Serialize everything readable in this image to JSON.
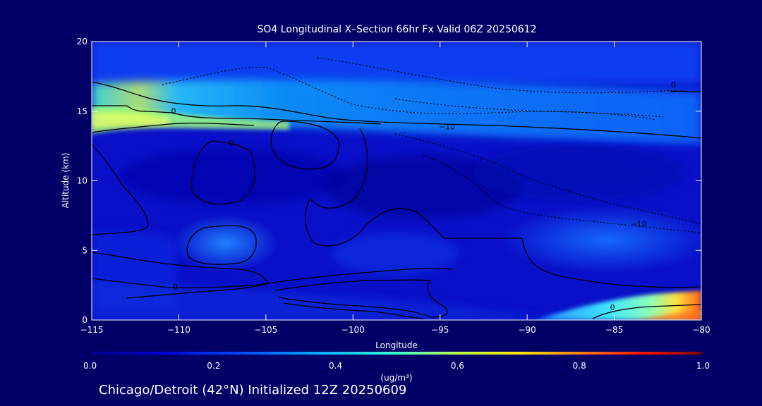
{
  "chart_data": {
    "type": "heatmap",
    "title": "SO4 Longitudinal X–Section 66hr  Fx Valid 06Z 20250612",
    "xlabel": "Longitude",
    "ylabel": "Altitude (km)",
    "xlim": [
      -115,
      -80
    ],
    "ylim": [
      0,
      20
    ],
    "x_ticks": [
      -115,
      -110,
      -105,
      -100,
      -95,
      -90,
      -85,
      -80
    ],
    "x_tick_labels": [
      "−115",
      "−110",
      "−105",
      "−100",
      "−95",
      "−90",
      "−85",
      "−80"
    ],
    "y_ticks": [
      0,
      5,
      10,
      15,
      20
    ],
    "colorbar": {
      "label": "(ug/m³)",
      "range": [
        0.0,
        1.0
      ],
      "ticks": [
        "0.0",
        "0.2",
        "0.4",
        "0.6",
        "0.8",
        "1.0"
      ]
    },
    "contour_labels": [
      {
        "text": "0",
        "lon": -110.3,
        "alt": 14.8
      },
      {
        "text": "0",
        "lon": -107.0,
        "alt": 12.5
      },
      {
        "text": "−10",
        "lon": -94.6,
        "alt": 13.7
      },
      {
        "text": "−10",
        "lon": -83.6,
        "alt": 6.7
      },
      {
        "text": "0",
        "lon": -110.2,
        "alt": 2.2
      },
      {
        "text": "0",
        "lon": -85.1,
        "alt": 0.7
      },
      {
        "text": "0",
        "lon": -81.6,
        "alt": 16.7
      }
    ],
    "concentration_features": [
      {
        "lon_range": [
          -115,
          -110
        ],
        "alt_range": [
          13.6,
          15.0
        ],
        "value": 0.42
      },
      {
        "lon_range": [
          -110,
          -100
        ],
        "alt_range": [
          13.5,
          15.0
        ],
        "value": 0.2
      },
      {
        "lon_range": [
          -100,
          -80
        ],
        "alt_range": [
          12.8,
          17.5
        ],
        "value": 0.18
      },
      {
        "lon_range": [
          -115,
          -80
        ],
        "alt_range": [
          17.5,
          20
        ],
        "value": 0.1
      },
      {
        "lon_range": [
          -109,
          -104
        ],
        "alt_range": [
          4.0,
          6.5
        ],
        "value": 0.17
      },
      {
        "lon_range": [
          -90,
          -80
        ],
        "alt_range": [
          3.0,
          8.0
        ],
        "value": 0.14
      },
      {
        "lon_range": [
          -89,
          -80
        ],
        "alt_range": [
          0,
          1.6
        ],
        "value": 0.45
      }
    ]
  },
  "footer": "Chicago/Detroit (42°N) Initialized 12Z 20250609"
}
